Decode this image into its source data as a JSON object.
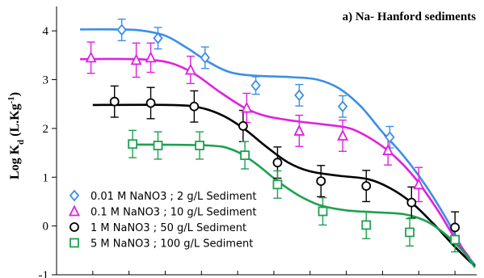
{
  "chart_data": {
    "type": "scatter",
    "title": "a) Na- Hanford sediments",
    "ylabel": {
      "pre": "Log K",
      "sub": "d",
      "mid": " (L.Kg",
      "sup": "-1",
      "post": ")"
    },
    "xlabel": "",
    "xlim": [
      0,
      11.6
    ],
    "ylim": [
      -1,
      4.5
    ],
    "x_ticks": [
      1,
      2,
      3,
      4,
      5,
      6,
      7,
      8,
      9,
      10,
      11
    ],
    "y_ticks": [
      -1,
      0,
      1,
      2,
      3,
      4
    ],
    "y_tick_labels": [
      "-1",
      "0",
      "1",
      "2",
      "3",
      "4"
    ],
    "grid": false,
    "legend_position": "bottom-left",
    "series": [
      {
        "name": "0.01 M NaNO3 ; 2 g/L Sediment",
        "color": "#3d8ee6",
        "marker": "diamond",
        "points": [
          {
            "x": 1.8,
            "y": 4.02,
            "err": 0.22
          },
          {
            "x": 2.8,
            "y": 3.85,
            "err": 0.22
          },
          {
            "x": 4.1,
            "y": 3.45,
            "err": 0.22
          },
          {
            "x": 5.5,
            "y": 2.88,
            "err": 0.18
          },
          {
            "x": 6.7,
            "y": 2.68,
            "err": 0.22
          },
          {
            "x": 7.9,
            "y": 2.45,
            "err": 0.22
          },
          {
            "x": 9.2,
            "y": 1.82,
            "err": 0.22
          }
        ],
        "curve": [
          [
            0.65,
            4.03
          ],
          [
            1.6,
            4.03
          ],
          [
            2.3,
            4.01
          ],
          [
            3.0,
            3.9
          ],
          [
            3.6,
            3.65
          ],
          [
            4.2,
            3.36
          ],
          [
            4.8,
            3.15
          ],
          [
            5.5,
            3.08
          ],
          [
            6.5,
            3.05
          ],
          [
            7.2,
            3.0
          ],
          [
            7.8,
            2.82
          ],
          [
            8.4,
            2.45
          ],
          [
            9.0,
            1.92
          ],
          [
            9.6,
            1.42
          ],
          [
            10.2,
            0.82
          ],
          [
            10.8,
            0.1
          ],
          [
            11.2,
            -0.45
          ],
          [
            11.55,
            -0.8
          ]
        ]
      },
      {
        "name": "0.1 M NaNO3 ; 10 g/L Sediment",
        "color": "#e020e0",
        "marker": "triangle",
        "points": [
          {
            "x": 0.95,
            "y": 3.45,
            "err": 0.32
          },
          {
            "x": 2.2,
            "y": 3.4,
            "err": 0.35
          },
          {
            "x": 2.6,
            "y": 3.45,
            "err": 0.3
          },
          {
            "x": 3.7,
            "y": 3.2,
            "err": 0.28
          },
          {
            "x": 5.25,
            "y": 2.42,
            "err": 0.3
          },
          {
            "x": 6.7,
            "y": 1.95,
            "err": 0.32
          },
          {
            "x": 7.9,
            "y": 1.85,
            "err": 0.32
          },
          {
            "x": 9.15,
            "y": 1.55,
            "err": 0.3
          },
          {
            "x": 10.0,
            "y": 0.85,
            "err": 0.35
          }
        ],
        "curve": [
          [
            0.65,
            3.42
          ],
          [
            2.2,
            3.42
          ],
          [
            3.1,
            3.35
          ],
          [
            3.8,
            3.12
          ],
          [
            4.5,
            2.75
          ],
          [
            5.2,
            2.42
          ],
          [
            5.8,
            2.25
          ],
          [
            6.6,
            2.15
          ],
          [
            7.4,
            2.08
          ],
          [
            8.1,
            2.0
          ],
          [
            8.7,
            1.78
          ],
          [
            9.3,
            1.45
          ],
          [
            9.9,
            0.98
          ],
          [
            10.5,
            0.35
          ],
          [
            11.0,
            -0.25
          ],
          [
            11.4,
            -0.65
          ]
        ]
      },
      {
        "name": "1 M NaNO3 ; 50 g/L Sediment",
        "color": "#000000",
        "marker": "circle",
        "points": [
          {
            "x": 1.6,
            "y": 2.55,
            "err": 0.32
          },
          {
            "x": 2.6,
            "y": 2.52,
            "err": 0.32
          },
          {
            "x": 3.8,
            "y": 2.45,
            "err": 0.32
          },
          {
            "x": 5.15,
            "y": 2.05,
            "err": 0.32
          },
          {
            "x": 6.1,
            "y": 1.3,
            "err": 0.32
          },
          {
            "x": 7.3,
            "y": 0.92,
            "err": 0.32
          },
          {
            "x": 8.55,
            "y": 0.82,
            "err": 0.32
          },
          {
            "x": 9.8,
            "y": 0.48,
            "err": 0.32
          },
          {
            "x": 11.0,
            "y": -0.03,
            "err": 0.32
          }
        ],
        "curve": [
          [
            1.0,
            2.48
          ],
          [
            3.2,
            2.48
          ],
          [
            4.0,
            2.42
          ],
          [
            4.6,
            2.26
          ],
          [
            5.2,
            1.98
          ],
          [
            5.8,
            1.62
          ],
          [
            6.4,
            1.3
          ],
          [
            7.0,
            1.12
          ],
          [
            7.8,
            1.03
          ],
          [
            8.6,
            0.96
          ],
          [
            9.2,
            0.78
          ],
          [
            9.8,
            0.48
          ],
          [
            10.4,
            0.05
          ],
          [
            10.9,
            -0.35
          ],
          [
            11.3,
            -0.65
          ],
          [
            11.55,
            -0.82
          ]
        ]
      },
      {
        "name": "5 M NaNO3 ; 100 g/L Sediment",
        "color": "#1ea050",
        "marker": "square",
        "points": [
          {
            "x": 2.1,
            "y": 1.68,
            "err": 0.28
          },
          {
            "x": 2.8,
            "y": 1.65,
            "err": 0.28
          },
          {
            "x": 3.95,
            "y": 1.65,
            "err": 0.28
          },
          {
            "x": 5.2,
            "y": 1.45,
            "err": 0.28
          },
          {
            "x": 6.1,
            "y": 0.85,
            "err": 0.28
          },
          {
            "x": 7.35,
            "y": 0.3,
            "err": 0.28
          },
          {
            "x": 8.55,
            "y": 0.02,
            "err": 0.28
          },
          {
            "x": 9.75,
            "y": -0.13,
            "err": 0.28
          },
          {
            "x": 11.0,
            "y": -0.28,
            "err": 0.25
          }
        ],
        "curve": [
          [
            2.1,
            1.67
          ],
          [
            4.2,
            1.65
          ],
          [
            4.9,
            1.55
          ],
          [
            5.5,
            1.28
          ],
          [
            6.1,
            0.92
          ],
          [
            6.7,
            0.62
          ],
          [
            7.3,
            0.42
          ],
          [
            8.0,
            0.32
          ],
          [
            8.8,
            0.28
          ],
          [
            9.6,
            0.24
          ],
          [
            10.2,
            0.1
          ],
          [
            10.7,
            -0.15
          ],
          [
            11.2,
            -0.5
          ],
          [
            11.55,
            -0.85
          ]
        ]
      }
    ]
  }
}
